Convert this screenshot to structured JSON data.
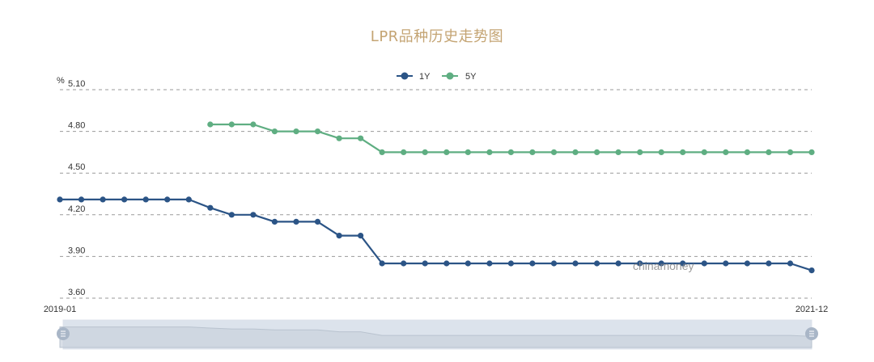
{
  "chart_data": {
    "type": "line",
    "title": "LPR品种历史走势图",
    "ylabel": "%",
    "ylim": [
      3.6,
      5.1
    ],
    "yticks": [
      "5.10",
      "4.80",
      "4.50",
      "4.20",
      "3.90",
      "3.60"
    ],
    "x_start_label": "2019-01",
    "x_end_label": "2021-12",
    "watermark": "chinamoney",
    "series": [
      {
        "name": "1Y",
        "color": "#2b5486",
        "values": [
          4.31,
          4.31,
          4.31,
          4.31,
          4.31,
          4.31,
          4.31,
          4.25,
          4.2,
          4.2,
          4.15,
          4.15,
          4.15,
          4.05,
          4.05,
          3.85,
          3.85,
          3.85,
          3.85,
          3.85,
          3.85,
          3.85,
          3.85,
          3.85,
          3.85,
          3.85,
          3.85,
          3.85,
          3.85,
          3.85,
          3.85,
          3.85,
          3.85,
          3.85,
          3.85,
          3.8
        ]
      },
      {
        "name": "5Y",
        "color": "#5fae82",
        "values": [
          null,
          null,
          null,
          null,
          null,
          null,
          null,
          4.85,
          4.85,
          4.85,
          4.8,
          4.8,
          4.8,
          4.75,
          4.75,
          4.65,
          4.65,
          4.65,
          4.65,
          4.65,
          4.65,
          4.65,
          4.65,
          4.65,
          4.65,
          4.65,
          4.65,
          4.65,
          4.65,
          4.65,
          4.65,
          4.65,
          4.65,
          4.65,
          4.65,
          4.65
        ]
      }
    ],
    "legend_position": "top-center"
  }
}
